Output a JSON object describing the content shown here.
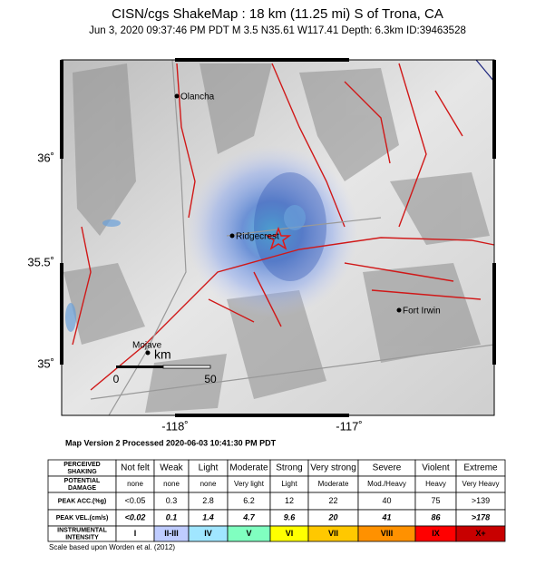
{
  "header": {
    "title": "CISN/cgs ShakeMap : 18 km (11.25 mi) S of Trona, CA",
    "subtitle": "Jun  3, 2020 09:37:46 PM PDT   M 3.5   N35.61 W117.41   Depth: 6.3km   ID:39463528"
  },
  "map": {
    "lat_labels": [
      "36˚",
      "35.5˚",
      "35˚"
    ],
    "lon_labels": [
      "-118˚",
      "-117˚"
    ],
    "places": [
      "Olancha",
      "Ridgecrest",
      "Fort Irwin",
      "Mojave"
    ],
    "scale": {
      "unit": "km",
      "labels": [
        "0",
        "50"
      ]
    }
  },
  "footer": {
    "processed": "Map Version 2 Processed 2020-06-03 10:41:30 PM PDT",
    "scale_note": "Scale based upon Worden et al. (2012)"
  },
  "table": {
    "rows": [
      {
        "label": "PERCEIVED SHAKING",
        "cells": [
          "Not felt",
          "Weak",
          "Light",
          "Moderate",
          "Strong",
          "Very strong",
          "Severe",
          "Violent",
          "Extreme"
        ]
      },
      {
        "label": "POTENTIAL DAMAGE",
        "cells": [
          "none",
          "none",
          "none",
          "Very light",
          "Light",
          "Moderate",
          "Mod./Heavy",
          "Heavy",
          "Very Heavy"
        ]
      },
      {
        "label": "PEAK ACC.(%g)",
        "cells": [
          "<0.05",
          "0.3",
          "2.8",
          "6.2",
          "12",
          "22",
          "40",
          "75",
          ">139"
        ]
      },
      {
        "label": "PEAK VEL.(cm/s)",
        "cells": [
          "<0.02",
          "0.1",
          "1.4",
          "4.7",
          "9.6",
          "20",
          "41",
          "86",
          ">178"
        ]
      },
      {
        "label": "INSTRUMENTAL INTENSITY",
        "cells": [
          "I",
          "II-III",
          "IV",
          "V",
          "VI",
          "VII",
          "VIII",
          "IX",
          "X+"
        ]
      }
    ]
  }
}
